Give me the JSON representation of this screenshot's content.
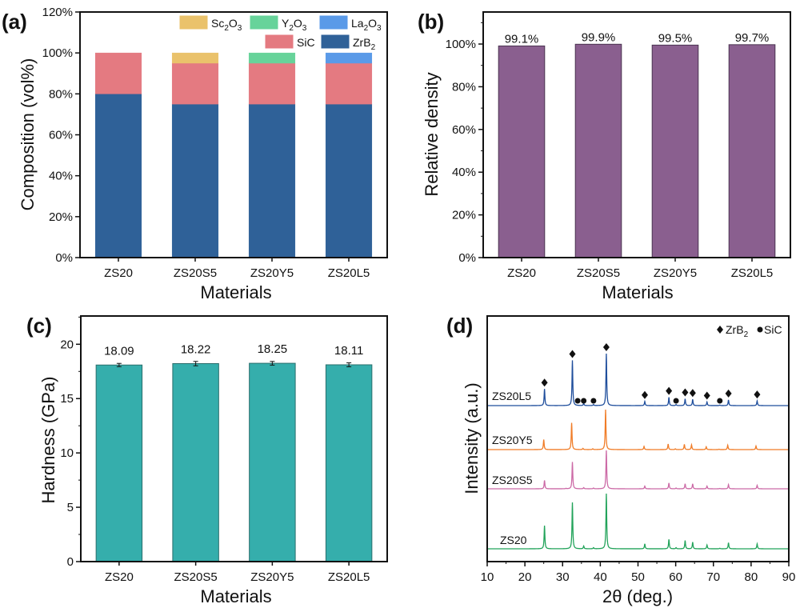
{
  "chart_data": [
    {
      "panel": "(a)",
      "type": "bar",
      "stacked": true,
      "title": "",
      "xlabel": "Materials",
      "ylabel": "Composition (vol%)",
      "categories": [
        "ZS20",
        "ZS20S5",
        "ZS20Y5",
        "ZS20L5"
      ],
      "ylim": [
        0,
        120
      ],
      "yticks": [
        "0%",
        "20%",
        "40%",
        "60%",
        "80%",
        "100%",
        "120%"
      ],
      "legend_position": "top-right",
      "series": [
        {
          "name": "ZrB2",
          "label_main": "ZrB",
          "label_sub": "2",
          "label_tail": "",
          "color": "#2f6198",
          "values": [
            80,
            75,
            75,
            75
          ]
        },
        {
          "name": "SiC",
          "label_main": "SiC",
          "label_sub": "",
          "label_tail": "",
          "color": "#e47a81",
          "values": [
            20,
            20,
            20,
            20
          ]
        },
        {
          "name": "Sc2O3",
          "label_main": "Sc",
          "label_sub": "2",
          "label_tail": "O3",
          "color": "#eac26b",
          "values": [
            0,
            5,
            0,
            0
          ]
        },
        {
          "name": "Y2O3",
          "label_main": "Y",
          "label_sub": "2",
          "label_tail": "O3",
          "color": "#67d39a",
          "values": [
            0,
            0,
            5,
            0
          ]
        },
        {
          "name": "La2O3",
          "label_main": "La",
          "label_sub": "2",
          "label_tail": "O3",
          "color": "#5a9ae8",
          "values": [
            0,
            0,
            0,
            5
          ]
        }
      ]
    },
    {
      "panel": "(b)",
      "type": "bar",
      "title": "",
      "xlabel": "Materials",
      "ylabel": "Relative density",
      "categories": [
        "ZS20",
        "ZS20S5",
        "ZS20Y5",
        "ZS20L5"
      ],
      "values": [
        99.1,
        99.9,
        99.5,
        99.7
      ],
      "data_labels": [
        "99.1%",
        "99.9%",
        "99.5%",
        "99.7%"
      ],
      "ylim": [
        0,
        115
      ],
      "yticks": [
        "0%",
        "20%",
        "40%",
        "60%",
        "80%",
        "100%"
      ],
      "color": "#8a5f8f"
    },
    {
      "panel": "(c)",
      "type": "bar",
      "title": "",
      "xlabel": "Materials",
      "ylabel": "Hardness (GPa)",
      "categories": [
        "ZS20",
        "ZS20S5",
        "ZS20Y5",
        "ZS20L5"
      ],
      "values": [
        18.09,
        18.22,
        18.25,
        18.11
      ],
      "errors": [
        0.15,
        0.2,
        0.17,
        0.18
      ],
      "data_labels": [
        "18.09",
        "18.22",
        "18.25",
        "18.11"
      ],
      "ylim": [
        0,
        22.6
      ],
      "yticks": [
        "0",
        "5",
        "10",
        "15",
        "20"
      ],
      "color": "#35aeac"
    },
    {
      "panel": "(d)",
      "type": "line",
      "title": "",
      "xlabel": "2θ (deg.)",
      "ylabel": "Intensity (a.u.)",
      "xlim": [
        10,
        90
      ],
      "xticks": [
        "10",
        "20",
        "30",
        "40",
        "50",
        "60",
        "70",
        "80",
        "90"
      ],
      "legend": [
        {
          "marker": "diamond",
          "main": "ZrB",
          "sub": "2"
        },
        {
          "marker": "circle",
          "main": "SiC",
          "sub": ""
        }
      ],
      "legend_position": "top-right",
      "peaks_zrb2": [
        25.2,
        32.6,
        41.6,
        51.8,
        58.2,
        62.5,
        64.5,
        68.3,
        74.0,
        81.6
      ],
      "peaks_sic": [
        34.0,
        35.6,
        38.2,
        60.1,
        71.7
      ],
      "series": [
        {
          "name": "ZS20L5",
          "color": "#1f4e9c",
          "offset": 3,
          "markers": true,
          "peaks": [
            [
              25.2,
              32
            ],
            [
              32.6,
              87
            ],
            [
              41.6,
              100
            ],
            [
              51.8,
              8
            ],
            [
              58.2,
              16
            ],
            [
              62.5,
              13
            ],
            [
              64.5,
              12
            ],
            [
              68.3,
              7
            ],
            [
              74.0,
              11
            ],
            [
              81.6,
              9
            ],
            [
              35.6,
              4
            ],
            [
              38.2,
              2
            ],
            [
              60.1,
              2
            ],
            [
              71.7,
              1
            ]
          ]
        },
        {
          "name": "ZS20Y5",
          "color": "#f07c27",
          "offset": 2,
          "markers": false,
          "peaks": [
            [
              25.0,
              25
            ],
            [
              32.4,
              67
            ],
            [
              41.4,
              100
            ],
            [
              51.6,
              8
            ],
            [
              58.0,
              14
            ],
            [
              62.3,
              13
            ],
            [
              64.2,
              12
            ],
            [
              68.1,
              7
            ],
            [
              73.8,
              11
            ],
            [
              81.3,
              9
            ],
            [
              35.4,
              3
            ],
            [
              38.0,
              2
            ],
            [
              59.9,
              2
            ],
            [
              71.5,
              1
            ]
          ]
        },
        {
          "name": "ZS20S5",
          "color": "#cc6aa6",
          "offset": 1,
          "markers": false,
          "peaks": [
            [
              25.2,
              22
            ],
            [
              32.6,
              70
            ],
            [
              41.6,
              100
            ],
            [
              51.8,
              7
            ],
            [
              58.2,
              15
            ],
            [
              62.5,
              13
            ],
            [
              64.5,
              13
            ],
            [
              68.3,
              7
            ],
            [
              74.0,
              11
            ],
            [
              81.6,
              9
            ],
            [
              35.6,
              3
            ],
            [
              38.2,
              2
            ],
            [
              30.9,
              1
            ],
            [
              60.1,
              2
            ],
            [
              71.7,
              1
            ]
          ]
        },
        {
          "name": "ZS20",
          "color": "#22a35a",
          "offset": 0,
          "markers": false,
          "peaks": [
            [
              25.2,
              42
            ],
            [
              32.6,
              84
            ],
            [
              41.6,
              100
            ],
            [
              51.8,
              9
            ],
            [
              58.2,
              17
            ],
            [
              62.5,
              15
            ],
            [
              64.5,
              12
            ],
            [
              68.3,
              7
            ],
            [
              74.0,
              11
            ],
            [
              81.6,
              9
            ],
            [
              35.6,
              5
            ],
            [
              38.2,
              2
            ],
            [
              60.1,
              2
            ],
            [
              71.7,
              1
            ]
          ]
        }
      ]
    }
  ]
}
